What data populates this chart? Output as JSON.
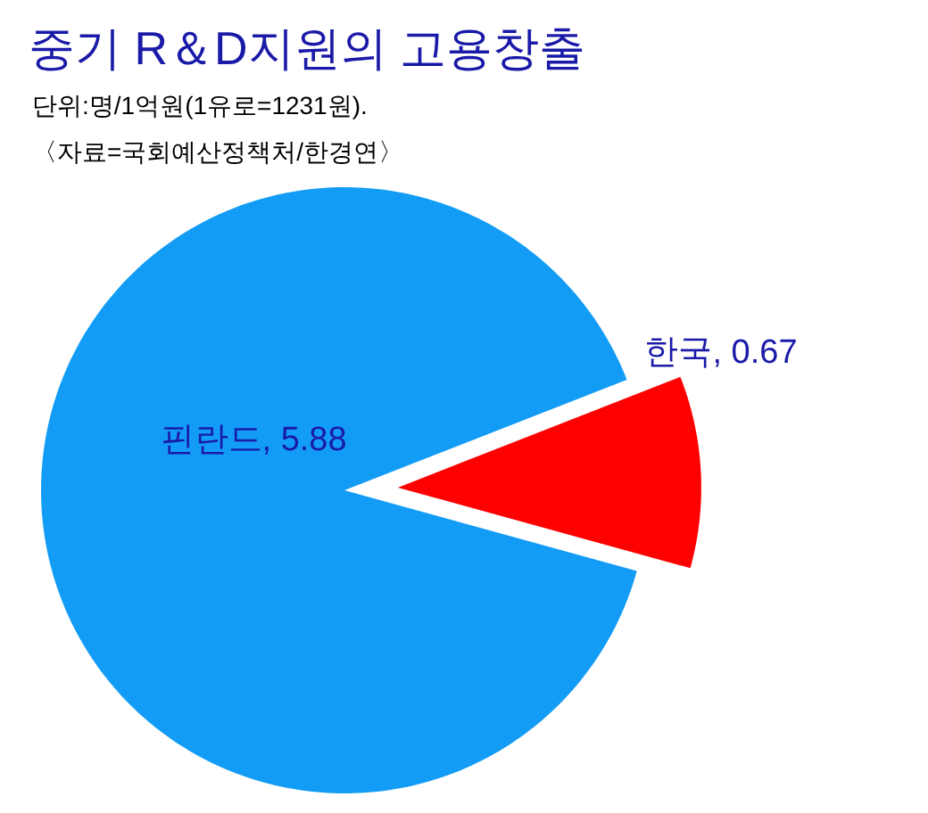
{
  "chart_data": {
    "type": "pie",
    "title": "중기 R＆D지원의 고용창출",
    "subtitle": "단위:명/1억원(1유로=1231원).",
    "annotations": [
      "〈자료=국회예산정책처/한경연〉"
    ],
    "categories": [
      "핀란드",
      "한국"
    ],
    "values": [
      5.88,
      0.67
    ],
    "value_labels": [
      ",  5.88",
      ", 0.67"
    ],
    "colors": [
      "#139cf5",
      "#ff0000"
    ],
    "legend": false
  }
}
